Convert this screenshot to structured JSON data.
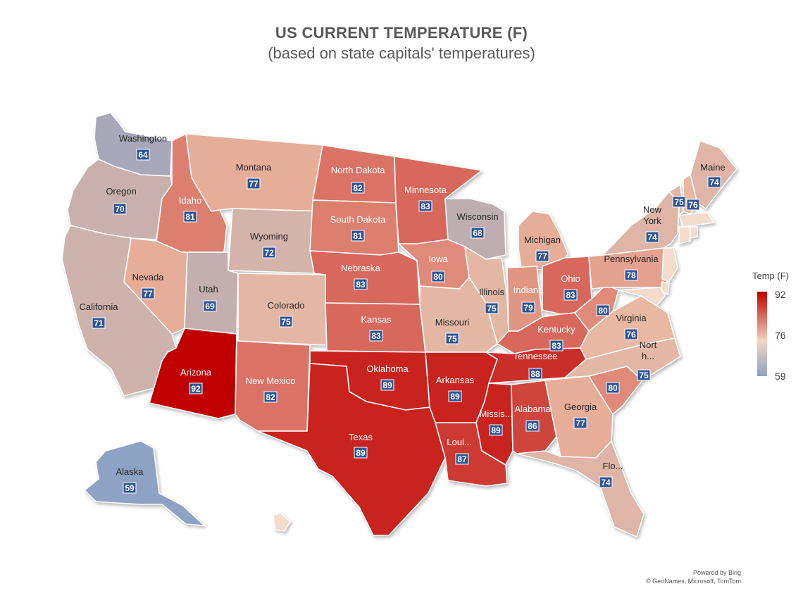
{
  "title": "US CURRENT TEMPERATURE (F)",
  "subtitle": "(based on state capitals' temperatures)",
  "legend": {
    "title": "Temp (F)",
    "max": "92",
    "mid": "76",
    "min": "59"
  },
  "credits": {
    "line1": "Powered by Bing",
    "line2": "© GeoNames, Microsoft, TomTom"
  },
  "colors": {
    "hot": "#c00000",
    "mid": "#e9b8a2",
    "cool": "#8ea2c4"
  },
  "states": [
    {
      "id": "WA",
      "label": "Washington",
      "value": 64
    },
    {
      "id": "OR",
      "label": "Oregon",
      "value": 70
    },
    {
      "id": "CA",
      "label": "California",
      "value": 71
    },
    {
      "id": "ID",
      "label": "Idaho",
      "value": 81
    },
    {
      "id": "NV",
      "label": "Nevada",
      "value": 77
    },
    {
      "id": "MT",
      "label": "Montana",
      "value": 77
    },
    {
      "id": "WY",
      "label": "Wyoming",
      "value": 72
    },
    {
      "id": "UT",
      "label": "Utah",
      "value": 69
    },
    {
      "id": "AZ",
      "label": "Arizona",
      "value": 92
    },
    {
      "id": "CO",
      "label": "Colorado",
      "value": 75
    },
    {
      "id": "NM",
      "label": "New Mexico",
      "value": 82
    },
    {
      "id": "ND",
      "label": "North Dakota",
      "value": 82
    },
    {
      "id": "SD",
      "label": "South Dakota",
      "value": 81
    },
    {
      "id": "NE",
      "label": "Nebraska",
      "value": 83
    },
    {
      "id": "KS",
      "label": "Kansas",
      "value": 83
    },
    {
      "id": "OK",
      "label": "Oklahoma",
      "value": 89
    },
    {
      "id": "TX",
      "label": "Texas",
      "value": 89
    },
    {
      "id": "MN",
      "label": "Minnesota",
      "value": 83
    },
    {
      "id": "IA",
      "label": "Iowa",
      "value": 80
    },
    {
      "id": "MO",
      "label": "Missouri",
      "value": 75
    },
    {
      "id": "AR",
      "label": "Arkansas",
      "value": 89
    },
    {
      "id": "LA",
      "label": "Loui...",
      "value": 87
    },
    {
      "id": "WI",
      "label": "Wisconsin",
      "value": 68
    },
    {
      "id": "IL",
      "label": "Illinois",
      "value": 75
    },
    {
      "id": "MI",
      "label": "Michigan",
      "value": 77
    },
    {
      "id": "IN",
      "label": "Indiana",
      "value": 79
    },
    {
      "id": "OH",
      "label": "Ohio",
      "value": 83
    },
    {
      "id": "KY",
      "label": "Kentucky",
      "value": 83
    },
    {
      "id": "TN",
      "label": "Tennessee",
      "value": 88
    },
    {
      "id": "MS",
      "label": "Missis...",
      "value": 89
    },
    {
      "id": "AL",
      "label": "Alabama",
      "value": 86
    },
    {
      "id": "GA",
      "label": "Georgia",
      "value": 77
    },
    {
      "id": "FL",
      "label": "Flo...",
      "value": 74
    },
    {
      "id": "SC",
      "label": "",
      "value": 80
    },
    {
      "id": "NC",
      "label": "Nort h...",
      "value": 75
    },
    {
      "id": "VA",
      "label": "Virginia",
      "value": 76
    },
    {
      "id": "WV",
      "label": "",
      "value": 80
    },
    {
      "id": "PA",
      "label": "Pennsylvania",
      "value": 78
    },
    {
      "id": "NY",
      "label": "New York",
      "value": 74
    },
    {
      "id": "VT",
      "label": "",
      "value": 75
    },
    {
      "id": "NH",
      "label": "",
      "value": 76
    },
    {
      "id": "ME",
      "label": "Maine",
      "value": 74
    },
    {
      "id": "AK",
      "label": "Alaska",
      "value": 59
    },
    {
      "id": "HI",
      "label": "",
      "value": null
    },
    {
      "id": "MA",
      "label": "",
      "value": null
    },
    {
      "id": "CT",
      "label": "",
      "value": null
    },
    {
      "id": "RI",
      "label": "",
      "value": null
    },
    {
      "id": "NJ",
      "label": "",
      "value": null
    },
    {
      "id": "DE",
      "label": "",
      "value": null
    },
    {
      "id": "MD",
      "label": "",
      "value": null
    }
  ]
}
